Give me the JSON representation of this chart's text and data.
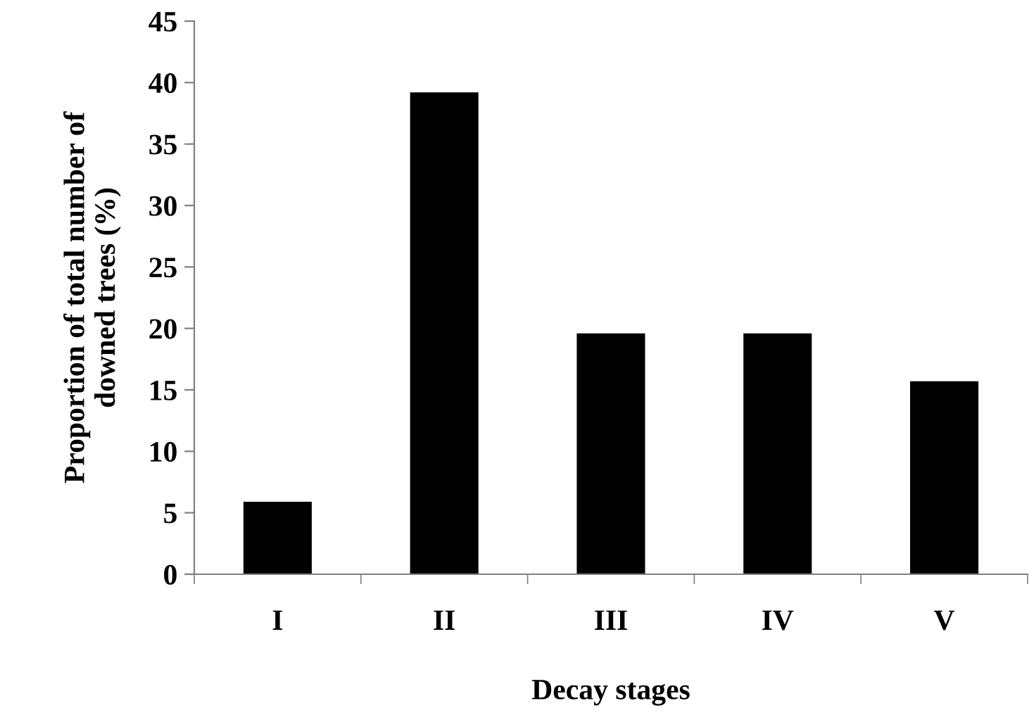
{
  "chart_data": {
    "type": "bar",
    "xlabel": "Decay stages",
    "ylabel": "Proportion of total number of\ndowned trees (%)",
    "categories": [
      "I",
      "II",
      "III",
      "IV",
      "V"
    ],
    "values": [
      5.9,
      39.2,
      19.6,
      19.6,
      15.7
    ],
    "color": "#000000",
    "ylim": [
      0,
      45
    ],
    "yticks": [
      0,
      5,
      10,
      15,
      20,
      25,
      30,
      35,
      40,
      45
    ],
    "grid": false
  }
}
